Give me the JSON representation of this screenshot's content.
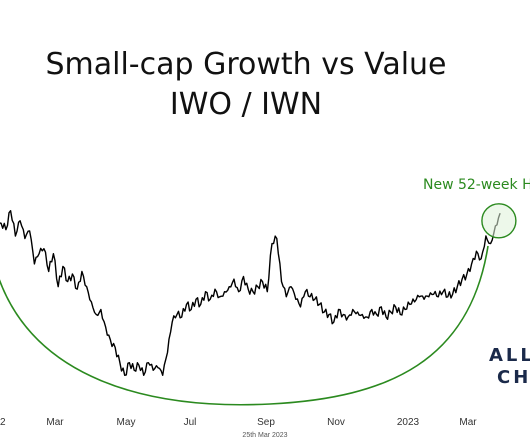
{
  "chart_data": {
    "type": "line",
    "title_lines": [
      "Small-cap Growth vs Value",
      "IWO / IWN"
    ],
    "xlabel": "",
    "ylabel": "",
    "x_tick_labels": [
      "2",
      "Mar",
      "May",
      "Jul",
      "Sep",
      "Nov",
      "2023",
      "Mar"
    ],
    "x": [
      "2022-01-24",
      "2022-01-28",
      "2022-02-01",
      "2022-02-05",
      "2022-02-09",
      "2022-02-13",
      "2022-02-17",
      "2022-02-21",
      "2022-02-25",
      "2022-03-01",
      "2022-03-05",
      "2022-03-09",
      "2022-03-13",
      "2022-03-17",
      "2022-03-21",
      "2022-03-25",
      "2022-03-29",
      "2022-04-02",
      "2022-04-06",
      "2022-04-10",
      "2022-04-14",
      "2022-04-18",
      "2022-04-22",
      "2022-04-26",
      "2022-04-30",
      "2022-05-04",
      "2022-05-08",
      "2022-05-12",
      "2022-05-16",
      "2022-05-20",
      "2022-05-24",
      "2022-05-28",
      "2022-06-01",
      "2022-06-05",
      "2022-06-09",
      "2022-06-13",
      "2022-06-17",
      "2022-06-21",
      "2022-06-25",
      "2022-06-29",
      "2022-07-03",
      "2022-07-07",
      "2022-07-11",
      "2022-07-15",
      "2022-07-19",
      "2022-07-23",
      "2022-07-27",
      "2022-07-31",
      "2022-08-04",
      "2022-08-08",
      "2022-08-12",
      "2022-08-16",
      "2022-08-20",
      "2022-08-24",
      "2022-08-28",
      "2022-09-01",
      "2022-09-05",
      "2022-09-09",
      "2022-09-13",
      "2022-09-17",
      "2022-09-21",
      "2022-09-25",
      "2022-09-29",
      "2022-10-03",
      "2022-10-07",
      "2022-10-11",
      "2022-10-15",
      "2022-10-19",
      "2022-10-23",
      "2022-10-27",
      "2022-10-31",
      "2022-11-04",
      "2022-11-08",
      "2022-11-12",
      "2022-11-16",
      "2022-11-20",
      "2022-11-24",
      "2022-11-28",
      "2022-12-02",
      "2022-12-06",
      "2022-12-10",
      "2022-12-14",
      "2022-12-18",
      "2022-12-22",
      "2022-12-26",
      "2022-12-30",
      "2023-01-03",
      "2023-01-07",
      "2023-01-11",
      "2023-01-15",
      "2023-01-19",
      "2023-01-23",
      "2023-01-27",
      "2023-01-31",
      "2023-02-04",
      "2023-02-08",
      "2023-02-12",
      "2023-02-16",
      "2023-02-20",
      "2023-02-24",
      "2023-02-28",
      "2023-03-04",
      "2023-03-08",
      "2023-03-12",
      "2023-03-16",
      "2023-03-20",
      "2023-03-24"
    ],
    "y": [
      0.872,
      0.88,
      0.875,
      0.89,
      0.87,
      0.882,
      0.868,
      0.874,
      0.848,
      0.856,
      0.86,
      0.842,
      0.856,
      0.83,
      0.846,
      0.834,
      0.84,
      0.828,
      0.842,
      0.83,
      0.818,
      0.808,
      0.812,
      0.798,
      0.788,
      0.782,
      0.77,
      0.76,
      0.77,
      0.764,
      0.768,
      0.76,
      0.77,
      0.764,
      0.766,
      0.76,
      0.778,
      0.802,
      0.808,
      0.806,
      0.816,
      0.812,
      0.82,
      0.816,
      0.826,
      0.82,
      0.828,
      0.822,
      0.826,
      0.83,
      0.836,
      0.826,
      0.838,
      0.828,
      0.826,
      0.83,
      0.834,
      0.826,
      0.864,
      0.868,
      0.834,
      0.822,
      0.83,
      0.82,
      0.814,
      0.826,
      0.822,
      0.82,
      0.816,
      0.81,
      0.808,
      0.802,
      0.812,
      0.808,
      0.806,
      0.812,
      0.81,
      0.808,
      0.806,
      0.812,
      0.808,
      0.814,
      0.806,
      0.81,
      0.814,
      0.808,
      0.812,
      0.816,
      0.818,
      0.822,
      0.82,
      0.822,
      0.824,
      0.822,
      0.826,
      0.822,
      0.824,
      0.83,
      0.836,
      0.84,
      0.848,
      0.858,
      0.852,
      0.87,
      0.864,
      0.878,
      0.888
    ],
    "ylim": [
      0.75,
      0.9
    ],
    "xlim": [
      "2022-01-22",
      "2023-04-03"
    ],
    "series_color": "#000000",
    "annotations": [
      {
        "type": "text",
        "text": "New  52-week H",
        "color": "#2b8a1f"
      },
      {
        "type": "circle",
        "at_x": "2023-03-23",
        "at_y": 0.882,
        "color": "#2b8a1f",
        "fill": "#dff2d8"
      },
      {
        "type": "arc",
        "description_from_chart": "saucer / rounded bottom",
        "color": "#2b8a1f"
      }
    ],
    "footer_date": "25th Mar 2023",
    "logo_lines": [
      "ALL",
      "CH"
    ],
    "logo_color": "#1b2a4a",
    "grid": false,
    "legend": "none"
  }
}
